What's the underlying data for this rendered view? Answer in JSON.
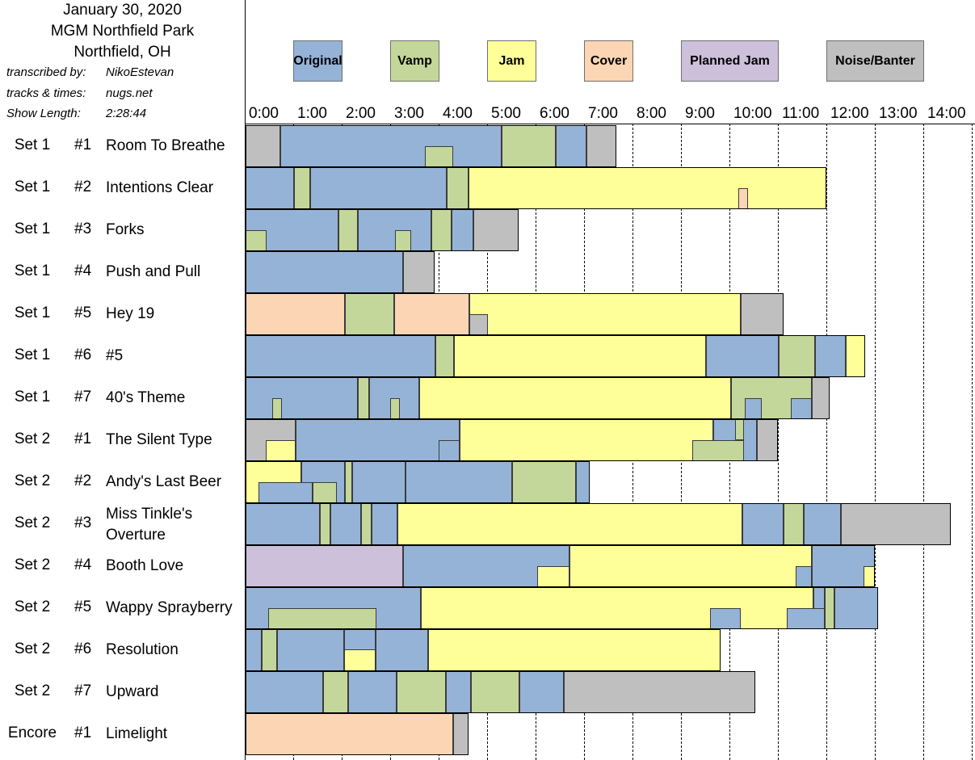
{
  "show": {
    "date": "January 30, 2020",
    "venue": "MGM Northfield Park",
    "city": "Northfield, OH",
    "transcribed_label": "transcribed by:",
    "transcribed_value": "NikoEstevan",
    "tracks_label": "tracks & times:",
    "tracks_value": "nugs.net",
    "length_label": "Show Length:",
    "length_value": "2:28:44"
  },
  "chart_data": {
    "type": "timeline",
    "x_unit": "minutes",
    "xlim": [
      0,
      15
    ],
    "ticks": [
      "0:00",
      "1:00",
      "2:00",
      "3:00",
      "4:00",
      "5:00",
      "6:00",
      "7:00",
      "8:00",
      "9:00",
      "10:00",
      "11:00",
      "12:00",
      "13:00",
      "14:00"
    ],
    "legend": [
      {
        "key": "O",
        "label": "Original",
        "color": "#95b3d7"
      },
      {
        "key": "V",
        "label": "Vamp",
        "color": "#c4d79b"
      },
      {
        "key": "J",
        "label": "Jam",
        "color": "#ffff99"
      },
      {
        "key": "C",
        "label": "Cover",
        "color": "#fcd5b4"
      },
      {
        "key": "P",
        "label": "Planned Jam",
        "color": "#ccc0da"
      },
      {
        "key": "N",
        "label": "Noise/Banter",
        "color": "#bfbfbf"
      }
    ],
    "songs": [
      {
        "set": "Set 1",
        "num": "#1",
        "title": "Room To Breathe",
        "length": 7.65,
        "segments": [
          [
            "N",
            0,
            0.72,
            0,
            1
          ],
          [
            "O",
            0.72,
            5.28,
            0,
            1
          ],
          [
            "V",
            5.28,
            6.4,
            0,
            1
          ],
          [
            "O",
            6.4,
            7.03,
            0,
            1
          ],
          [
            "N",
            7.03,
            7.65,
            0,
            1
          ],
          [
            "V",
            3.7,
            4.28,
            0.5,
            1
          ]
        ]
      },
      {
        "set": "Set 1",
        "num": "#2",
        "title": "Intentions Clear",
        "length": 11.98,
        "segments": [
          [
            "O",
            0,
            1,
            0,
            1
          ],
          [
            "V",
            1,
            1.33,
            0,
            1
          ],
          [
            "O",
            1.33,
            4.15,
            0,
            1
          ],
          [
            "V",
            4.15,
            4.6,
            0,
            1
          ],
          [
            "J",
            4.6,
            11.98,
            0,
            1
          ],
          [
            "C",
            10.17,
            10.37,
            0.5,
            1
          ]
        ]
      },
      {
        "set": "Set 1",
        "num": "#3",
        "title": "Forks",
        "length": 5.63,
        "segments": [
          [
            "O",
            0,
            1.92,
            0,
            1
          ],
          [
            "V",
            1.92,
            2.32,
            0,
            1
          ],
          [
            "O",
            2.32,
            3.83,
            0,
            1
          ],
          [
            "V",
            3.83,
            4.25,
            0,
            1
          ],
          [
            "O",
            4.25,
            4.7,
            0,
            1
          ],
          [
            "N",
            4.7,
            5.63,
            0,
            1
          ],
          [
            "V",
            0,
            0.43,
            0.5,
            1
          ],
          [
            "V",
            3.08,
            3.42,
            0.5,
            1
          ]
        ]
      },
      {
        "set": "Set 1",
        "num": "#4",
        "title": "Push and Pull",
        "length": 3.9,
        "segments": [
          [
            "O",
            0,
            3.25,
            0,
            1
          ],
          [
            "N",
            3.25,
            3.9,
            0,
            1
          ]
        ]
      },
      {
        "set": "Set 1",
        "num": "#5",
        "title": "Hey 19",
        "length": 11.1,
        "segments": [
          [
            "C",
            0,
            2.05,
            0,
            1
          ],
          [
            "V",
            2.05,
            3.07,
            0,
            1
          ],
          [
            "C",
            3.07,
            4.62,
            0,
            1
          ],
          [
            "J",
            4.62,
            10.22,
            0,
            1
          ],
          [
            "N",
            10.22,
            11.1,
            0,
            1
          ],
          [
            "N",
            4.62,
            5,
            0.5,
            1
          ]
        ]
      },
      {
        "set": "Set 1",
        "num": "#6",
        "title": "#5",
        "length": 12.78,
        "segments": [
          [
            "O",
            0,
            3.92,
            0,
            1
          ],
          [
            "V",
            3.92,
            4.3,
            0,
            1
          ],
          [
            "J",
            4.3,
            9.5,
            0,
            1
          ],
          [
            "O",
            9.5,
            11,
            0,
            1
          ],
          [
            "V",
            11,
            11.75,
            0,
            1
          ],
          [
            "O",
            11.75,
            12.38,
            0,
            1
          ],
          [
            "J",
            12.38,
            12.78,
            0,
            1
          ]
        ]
      },
      {
        "set": "Set 1",
        "num": "#7",
        "title": "40's Theme",
        "length": 12.05,
        "segments": [
          [
            "O",
            0,
            2.32,
            0,
            1
          ],
          [
            "V",
            2.32,
            2.55,
            0,
            1
          ],
          [
            "O",
            2.55,
            3.58,
            0,
            1
          ],
          [
            "J",
            3.58,
            10.02,
            0,
            1
          ],
          [
            "V",
            10.02,
            11.68,
            0,
            1
          ],
          [
            "N",
            11.68,
            12.05,
            0,
            1
          ],
          [
            "V",
            0.55,
            0.75,
            0.5,
            1
          ],
          [
            "V",
            2.98,
            3.18,
            0.5,
            1
          ],
          [
            "O",
            10.3,
            10.65,
            0.5,
            1
          ],
          [
            "O",
            11.25,
            11.68,
            0.5,
            1
          ]
        ]
      },
      {
        "set": "Set 2",
        "num": "#1",
        "title": "The Silent Type",
        "length": 10.98,
        "segments": [
          [
            "N",
            0,
            1.03,
            0,
            1
          ],
          [
            "O",
            1.03,
            4.42,
            0,
            1
          ],
          [
            "J",
            4.42,
            9.65,
            0,
            1
          ],
          [
            "O",
            9.65,
            10.55,
            0,
            1
          ],
          [
            "N",
            10.55,
            10.98,
            0,
            1
          ],
          [
            "J",
            0.42,
            1.03,
            0.5,
            1
          ],
          [
            "O",
            3.98,
            4.42,
            0.5,
            1
          ],
          [
            "V",
            9.22,
            10.28,
            0.5,
            1
          ],
          [
            "V",
            10.1,
            10.28,
            0,
            0.5
          ]
        ]
      },
      {
        "set": "Set 2",
        "num": "#2",
        "title": "Andy's Last Beer",
        "length": 7.1,
        "segments": [
          [
            "J",
            0,
            1.15,
            0,
            1
          ],
          [
            "O",
            1.15,
            2.05,
            0,
            1
          ],
          [
            "V",
            2.05,
            2.2,
            0,
            1
          ],
          [
            "O",
            2.2,
            3.3,
            0,
            1
          ],
          [
            "O",
            3.3,
            5.5,
            0,
            1
          ],
          [
            "V",
            5.5,
            6.82,
            0,
            1
          ],
          [
            "O",
            6.82,
            7.1,
            0,
            1
          ],
          [
            "O",
            0.27,
            1.38,
            0.5,
            1
          ],
          [
            "V",
            1.38,
            1.88,
            0.5,
            1
          ]
        ]
      },
      {
        "set": "Set 2",
        "num": "#3",
        "title": "Miss Tinkle's Overture",
        "title_l1": "Miss Tinkle's",
        "title_l2": "Overture",
        "length": 14.55,
        "segments": [
          [
            "O",
            0,
            1.53,
            0,
            1
          ],
          [
            "V",
            1.53,
            1.75,
            0,
            1
          ],
          [
            "O",
            1.75,
            2.38,
            0,
            1
          ],
          [
            "V",
            2.38,
            2.6,
            0,
            1
          ],
          [
            "O",
            2.6,
            3.13,
            0,
            1
          ],
          [
            "J",
            3.13,
            10.25,
            0,
            1
          ],
          [
            "O",
            10.25,
            11.1,
            0,
            1
          ],
          [
            "V",
            11.1,
            11.52,
            0,
            1
          ],
          [
            "O",
            11.52,
            12.28,
            0,
            1
          ],
          [
            "N",
            12.28,
            14.55,
            0,
            1
          ]
        ]
      },
      {
        "set": "Set 2",
        "num": "#4",
        "title": "Booth Love",
        "length": 12.98,
        "segments": [
          [
            "P",
            0,
            3.25,
            0,
            1
          ],
          [
            "O",
            3.25,
            6.68,
            0,
            1
          ],
          [
            "J",
            6.68,
            11.68,
            0,
            1
          ],
          [
            "O",
            11.68,
            12.98,
            0,
            1
          ],
          [
            "J",
            6.02,
            6.68,
            0.5,
            1
          ],
          [
            "O",
            11.35,
            11.68,
            0.5,
            1
          ],
          [
            "J",
            12.75,
            12.98,
            0.5,
            1
          ]
        ]
      },
      {
        "set": "Set 2",
        "num": "#5",
        "title": "Wappy Sprayberry",
        "length": 13.05,
        "segments": [
          [
            "O",
            0,
            3.62,
            0,
            1
          ],
          [
            "J",
            3.62,
            11.72,
            0,
            1
          ],
          [
            "O",
            11.72,
            11.95,
            0,
            1
          ],
          [
            "V",
            11.95,
            12.15,
            0,
            1
          ],
          [
            "O",
            12.15,
            13.05,
            0,
            1
          ],
          [
            "V",
            0.47,
            2.7,
            0.5,
            1
          ],
          [
            "O",
            9.58,
            10.22,
            0.5,
            1
          ],
          [
            "O",
            11.17,
            11.95,
            0.5,
            1
          ]
        ]
      },
      {
        "set": "Set 2",
        "num": "#6",
        "title": "Resolution",
        "length": 9.8,
        "segments": [
          [
            "O",
            0,
            0.33,
            0,
            1
          ],
          [
            "V",
            0.33,
            0.65,
            0,
            1
          ],
          [
            "O",
            0.65,
            2.03,
            0,
            1
          ],
          [
            "J",
            2.03,
            2.68,
            0,
            1
          ],
          [
            "O",
            2.68,
            3.77,
            0,
            1
          ],
          [
            "J",
            3.77,
            9.8,
            0,
            1
          ],
          [
            "O",
            2.03,
            2.68,
            0,
            0.5
          ]
        ]
      },
      {
        "set": "Set 2",
        "num": "#7",
        "title": "Upward",
        "length": 10.52,
        "segments": [
          [
            "O",
            0,
            1.6,
            0,
            1
          ],
          [
            "V",
            1.6,
            2.12,
            0,
            1
          ],
          [
            "O",
            2.12,
            3.12,
            0,
            1
          ],
          [
            "V",
            3.12,
            4.13,
            0,
            1
          ],
          [
            "O",
            4.13,
            4.65,
            0,
            1
          ],
          [
            "V",
            4.65,
            5.65,
            0,
            1
          ],
          [
            "O",
            5.65,
            6.57,
            0,
            1
          ],
          [
            "N",
            6.57,
            10.52,
            0,
            1
          ]
        ]
      },
      {
        "set": "Encore",
        "num": "#1",
        "title": "Limelight",
        "length": 4.6,
        "segments": [
          [
            "C",
            0,
            4.28,
            0,
            1
          ],
          [
            "N",
            4.28,
            4.6,
            0,
            1
          ]
        ]
      }
    ]
  }
}
